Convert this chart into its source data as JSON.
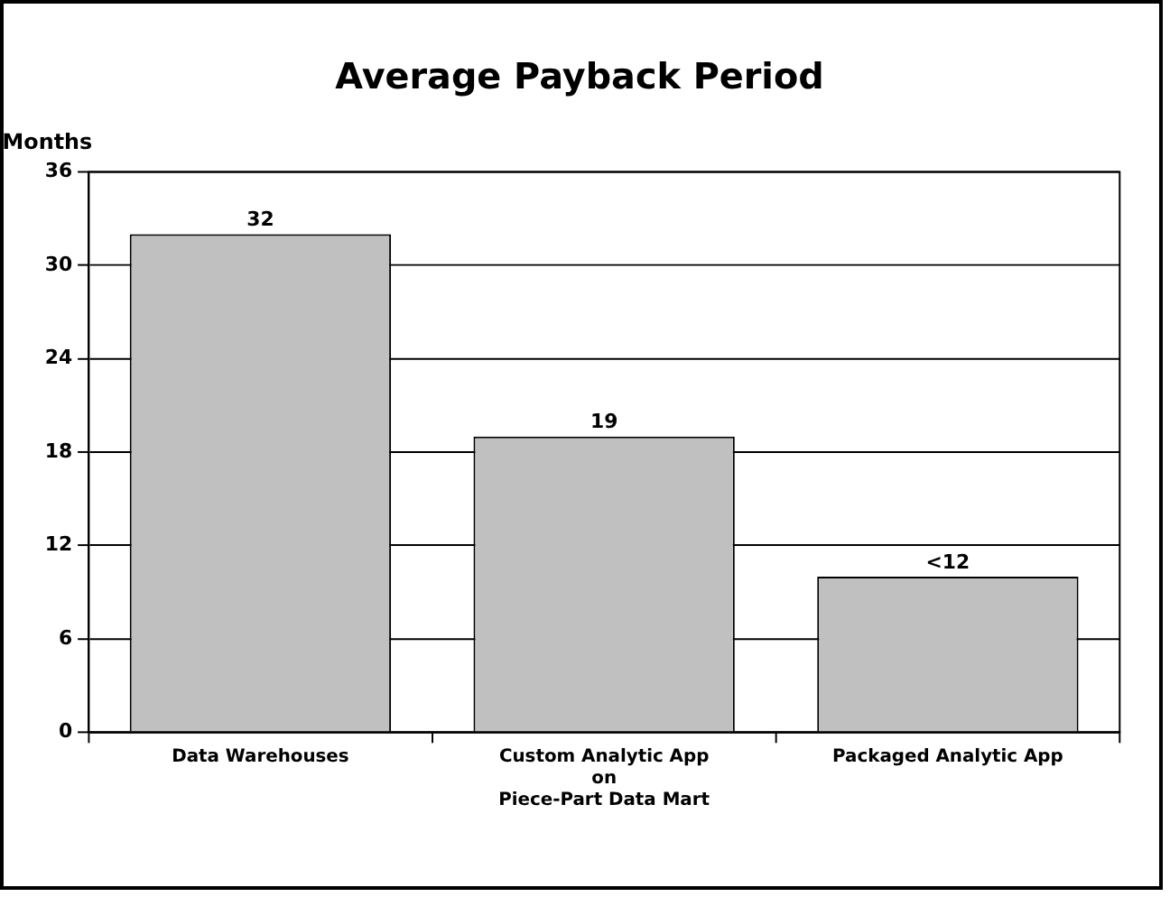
{
  "chart_data": {
    "type": "bar",
    "title": "Average Payback Period",
    "ylabel": "Months",
    "categories": [
      "Data Warehouses",
      "Custom Analytic App\non\nPiece-Part Data Mart",
      "Packaged Analytic App"
    ],
    "values": [
      32,
      19,
      10
    ],
    "value_labels": [
      "32",
      "19",
      "<12"
    ],
    "color": "#c0c0c0",
    "ylim": [
      0,
      36
    ],
    "yticks": [
      0,
      6,
      12,
      18,
      24,
      30,
      36
    ],
    "grid": "y",
    "legend": false
  }
}
